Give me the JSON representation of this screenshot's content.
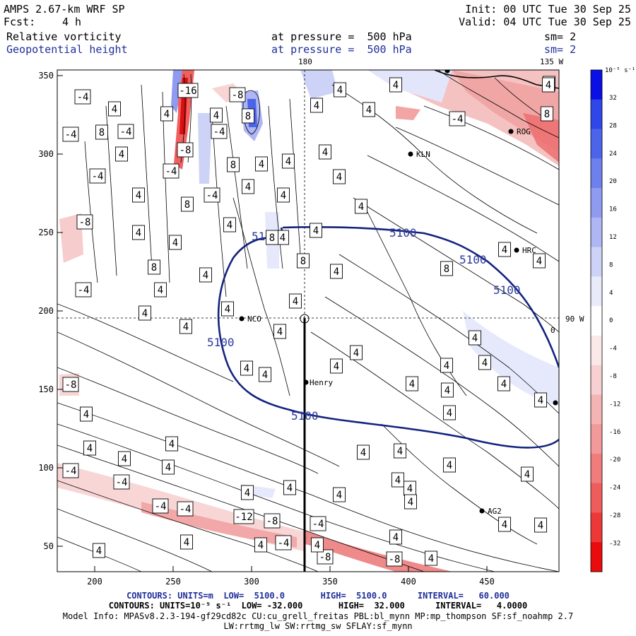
{
  "header": {
    "model": "AMPS 2.67-km WRF SP",
    "fcst_label": "Fcst:",
    "fcst_value": "4 h",
    "init": "Init: 00 UTC Tue 30 Sep 25",
    "valid": "Valid: 04 UTC Tue 30 Sep 25",
    "field1_name": "Relative vorticity",
    "field1_level": "at pressure =  500 hPa",
    "field1_smooth": "sm= 2",
    "field2_name": "Geopotential height",
    "field2_level": "at pressure =  500 hPa",
    "field2_smooth": "sm= 2"
  },
  "map": {
    "meridian_top_180": "180",
    "meridian_top_135w": "135 W",
    "meridian_right_90w": "90 W",
    "x_ticks": [
      "200",
      "250",
      "300",
      "350",
      "400",
      "450"
    ],
    "y_ticks": [
      "350",
      "300",
      "250",
      "200",
      "150",
      "100",
      "50"
    ],
    "stations": [
      {
        "name": "ROG"
      },
      {
        "name": "KLN"
      },
      {
        "name": "HRC"
      },
      {
        "name": "NCO"
      },
      {
        "name": "Henry"
      },
      {
        "name": "AG2"
      }
    ],
    "height_labels": [
      "5100",
      "5100",
      "5100",
      "5100",
      "5100",
      "5100"
    ],
    "vort_labels": [
      "-16",
      "-8",
      "-4",
      "-4",
      "-4",
      "-4",
      "-8",
      "-4",
      "-4",
      "-4",
      "-8",
      "-4",
      "-8",
      "-4",
      "-4",
      "-4",
      "-4",
      "-12",
      "-8",
      "-4",
      "-4",
      "-8",
      "-8",
      "-4",
      "4",
      "8",
      "4",
      "4",
      "4",
      "8",
      "4",
      "4",
      "8",
      "4",
      "4",
      "8",
      "4",
      "4",
      "4",
      "8",
      "4",
      "4",
      "8",
      "4",
      "4",
      "4",
      "4",
      "4",
      "4",
      "4",
      "8",
      "4",
      "4",
      "4",
      "4",
      "4",
      "4",
      "4",
      "4",
      "4",
      "4",
      "4",
      "4",
      "4",
      "4",
      "4",
      "4",
      "8",
      "4",
      "4",
      "8",
      "4",
      "4",
      "4",
      "4",
      "4",
      "4",
      "4",
      "4",
      "4",
      "4",
      "4",
      "4",
      "4",
      "4",
      "4",
      "4",
      "4",
      "4",
      "4",
      "4",
      "4",
      "4",
      "4",
      "4",
      "4",
      "4",
      "4",
      "4",
      "4",
      "4"
    ],
    "zero_label": "0"
  },
  "colorbar": {
    "unit": "10⁻⁵ s⁻¹",
    "levels": [
      "32",
      "28",
      "24",
      "20",
      "16",
      "12",
      "8",
      "4",
      "0",
      "-4",
      "-8",
      "-12",
      "-16",
      "-20",
      "-24",
      "-28",
      "-32"
    ],
    "colors": [
      "#0a0fe6",
      "#2f47e8",
      "#4c64ea",
      "#6d80ec",
      "#8f9bf0",
      "#aeb6f3",
      "#cdd2f7",
      "#e9ebfa",
      "#ffffff",
      "#fbe9e9",
      "#f7d1d1",
      "#f4b4b4",
      "#f29a9a",
      "#f07c7c",
      "#ef5c5c",
      "#ed3838",
      "#ea0c0c"
    ]
  },
  "footer": {
    "line1": "CONTOURS: UNITS=m  LOW=  5100.0       HIGH=  5100.0      INTERVAL=   60.000",
    "line2": "CONTOURS: UNITS=10⁻⁵ s⁻¹  LOW= -32.000       HIGH=  32.000      INTERVAL=   4.0000",
    "line3": "Model Info: MPASv8.2.3-194-gf29cd82c CU:cu_grell_freitas PBL:bl_mynn MP:mp_thompson SF:sf_noahmp 2.7",
    "line4": "LW:rrtmg_lw SW:rrtmg_sw SFLAY:sf_mynn"
  }
}
